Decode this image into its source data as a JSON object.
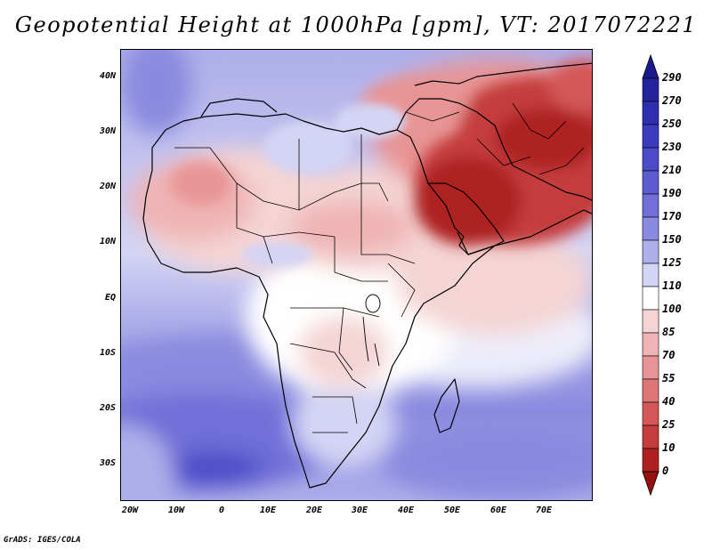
{
  "title": "Geopotential Height at 1000hPa [gpm], VT: 2017072221",
  "credit": "GrADS: IGES/COLA",
  "lat_labels": [
    "40N",
    "30N",
    "20N",
    "10N",
    "EQ",
    "10S",
    "20S",
    "30S"
  ],
  "lon_labels": [
    "20W",
    "10W",
    "0",
    "10E",
    "20E",
    "30E",
    "40E",
    "50E",
    "60E",
    "70E"
  ],
  "colorbar": {
    "levels": [
      "290",
      "270",
      "250",
      "230",
      "210",
      "190",
      "170",
      "150",
      "125",
      "110",
      "100",
      "85",
      "70",
      "55",
      "40",
      "25",
      "10",
      "0"
    ],
    "colors": [
      "#1a1a8c",
      "#23239e",
      "#2e2eb0",
      "#3b3bbe",
      "#4b4bc8",
      "#5c5cd0",
      "#7070d8",
      "#8a8ae0",
      "#aeaeea",
      "#d4d4f4",
      "#ffffff",
      "#f4d4d4",
      "#f0b4b4",
      "#e89494",
      "#df7676",
      "#d45858",
      "#c43c3c",
      "#ae2020",
      "#961010"
    ]
  }
}
